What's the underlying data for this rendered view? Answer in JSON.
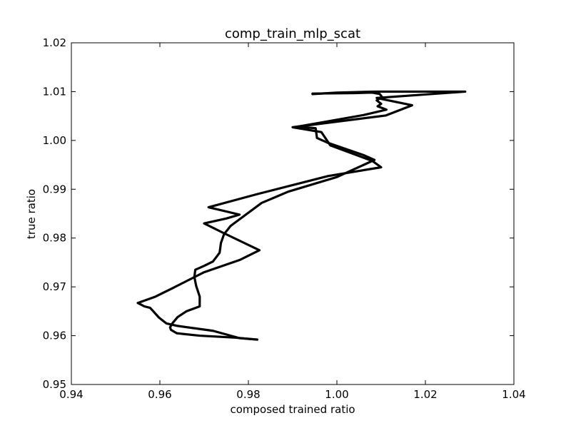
{
  "chart_data": {
    "type": "line",
    "title": "comp_train_mlp_scat",
    "xlabel": "composed trained ratio",
    "ylabel": "true ratio",
    "xlim": [
      0.94,
      1.04
    ],
    "ylim": [
      0.95,
      1.02
    ],
    "xticks": [
      "0.94",
      "0.96",
      "0.98",
      "1.00",
      "1.02",
      "1.04"
    ],
    "yticks": [
      "0.95",
      "0.96",
      "0.97",
      "0.98",
      "0.99",
      "1.00",
      "1.01",
      "1.02"
    ],
    "grid": false,
    "line_color": "#000000",
    "series": [
      {
        "x": [
          0.982,
          0.977,
          0.969,
          0.9638,
          0.9625,
          0.9623,
          0.9628,
          0.964,
          0.966,
          0.969,
          0.969,
          0.9682,
          0.9678,
          0.968,
          0.97,
          0.972,
          0.9735,
          0.9738,
          0.9745,
          0.976,
          0.983,
          0.989,
          1.0,
          1.0085,
          1.006,
          0.998,
          0.9955,
          0.9952,
          0.991,
          1.006,
          1.0112,
          1.0092,
          1.01,
          1.009,
          1.0102,
          1.0097,
          1.008,
          1.004,
          0.9945
        ],
        "y": [
          0.9592,
          0.9596,
          0.96,
          0.9605,
          0.9612,
          0.9617,
          0.9625,
          0.9638,
          0.965,
          0.966,
          0.968,
          0.9702,
          0.972,
          0.9735,
          0.9743,
          0.9752,
          0.977,
          0.979,
          0.9808,
          0.9825,
          0.9872,
          0.9895,
          0.9925,
          0.996,
          0.997,
          0.9995,
          1.0005,
          1.0025,
          1.0028,
          1.0052,
          1.0063,
          1.007,
          1.0075,
          1.0082,
          1.0089,
          1.0095,
          1.0098,
          1.0097,
          1.0096
        ]
      },
      {
        "x": [
          0.9945,
          1.0,
          1.0085,
          1.012,
          1.023,
          1.029,
          1.009,
          1.017,
          1.011,
          0.99,
          0.9965,
          0.9985,
          1.008,
          1.01,
          0.998,
          0.982,
          0.971,
          0.978,
          0.975,
          0.97,
          0.974,
          0.9825,
          0.978,
          0.97,
          0.963,
          0.959,
          0.955,
          0.9565,
          0.9578,
          0.9585,
          0.9598,
          0.9615,
          0.964,
          0.972,
          0.978,
          0.982
        ],
        "y": [
          1.0095,
          1.0098,
          1.01,
          1.01,
          1.01,
          1.01,
          1.0087,
          1.0072,
          1.0051,
          1.0027,
          1.0017,
          0.999,
          0.9958,
          0.9945,
          0.9927,
          0.989,
          0.9863,
          0.9848,
          0.984,
          0.983,
          0.9812,
          0.9775,
          0.9755,
          0.973,
          0.9698,
          0.968,
          0.9667,
          0.966,
          0.9657,
          0.965,
          0.9637,
          0.9625,
          0.962,
          0.961,
          0.9595,
          0.9592
        ]
      }
    ]
  }
}
